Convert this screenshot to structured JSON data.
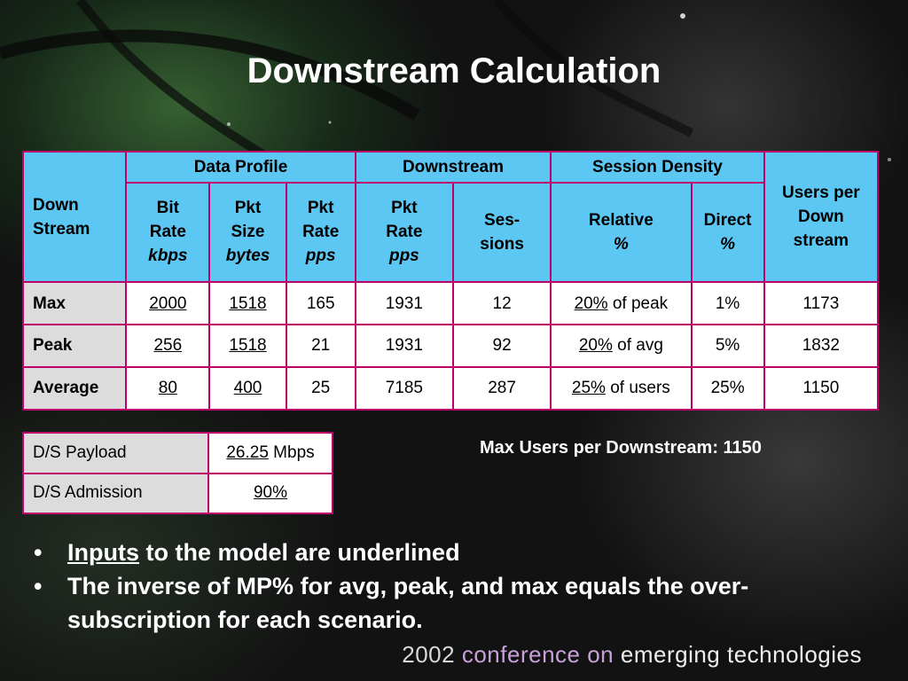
{
  "slide": {
    "title": "Downstream Calculation"
  },
  "main_table": {
    "corner_header": [
      "Down",
      "Stream"
    ],
    "group_headers": {
      "data_profile": "Data Profile",
      "downstream": "Downstream",
      "session_density": "Session Density",
      "users_per_downstream": [
        "Users per",
        "Down",
        "stream"
      ]
    },
    "sub_headers": {
      "bit_rate": [
        "Bit",
        "Rate",
        "kbps"
      ],
      "pkt_size": [
        "Pkt",
        "Size",
        "bytes"
      ],
      "pkt_rate": [
        "Pkt",
        "Rate",
        "pps"
      ],
      "ds_pkt_rate": [
        "Pkt",
        "Rate",
        "pps"
      ],
      "sessions": [
        "Ses-",
        "sions"
      ],
      "relative": [
        "Relative",
        "%"
      ],
      "direct": [
        "Direct",
        "%"
      ]
    },
    "rows": [
      {
        "label": "Max",
        "bit_rate": "2000",
        "pkt_size": "1518",
        "pkt_rate": "165",
        "ds_pkt_rate": "1931",
        "sessions": "12",
        "relative_value": "20%",
        "relative_suffix": "of peak",
        "direct": "1%",
        "users": "1173"
      },
      {
        "label": "Peak",
        "bit_rate": "256",
        "pkt_size": "1518",
        "pkt_rate": "21",
        "ds_pkt_rate": "1931",
        "sessions": "92",
        "relative_value": "20%",
        "relative_suffix": "of avg",
        "direct": "5%",
        "users": "1832"
      },
      {
        "label": "Average",
        "bit_rate": "80",
        "pkt_size": "400",
        "pkt_rate": "25",
        "ds_pkt_rate": "7185",
        "sessions": "287",
        "relative_value": "25%",
        "relative_suffix": "of users",
        "direct": "25%",
        "users": "1150"
      }
    ]
  },
  "small_table": {
    "payload_label": "D/S Payload",
    "payload_value": "26.25",
    "payload_unit": "Mbps",
    "admission_label": "D/S Admission",
    "admission_value": "90%"
  },
  "note": "Max Users per Downstream: 1150",
  "bullets": {
    "first_underlined": "Inputs",
    "first_rest": "to the model are underlined",
    "second": "The inverse of MP% for avg, peak, and max equals the over-subscription for each scenario."
  },
  "footer": {
    "year": "2002",
    "middle": "conference on",
    "last": "emerging technologies"
  },
  "colors": {
    "header_blue": "#5bc7f2",
    "border_magenta": "#c0006a",
    "row_label_gray": "#dcdcdc"
  }
}
